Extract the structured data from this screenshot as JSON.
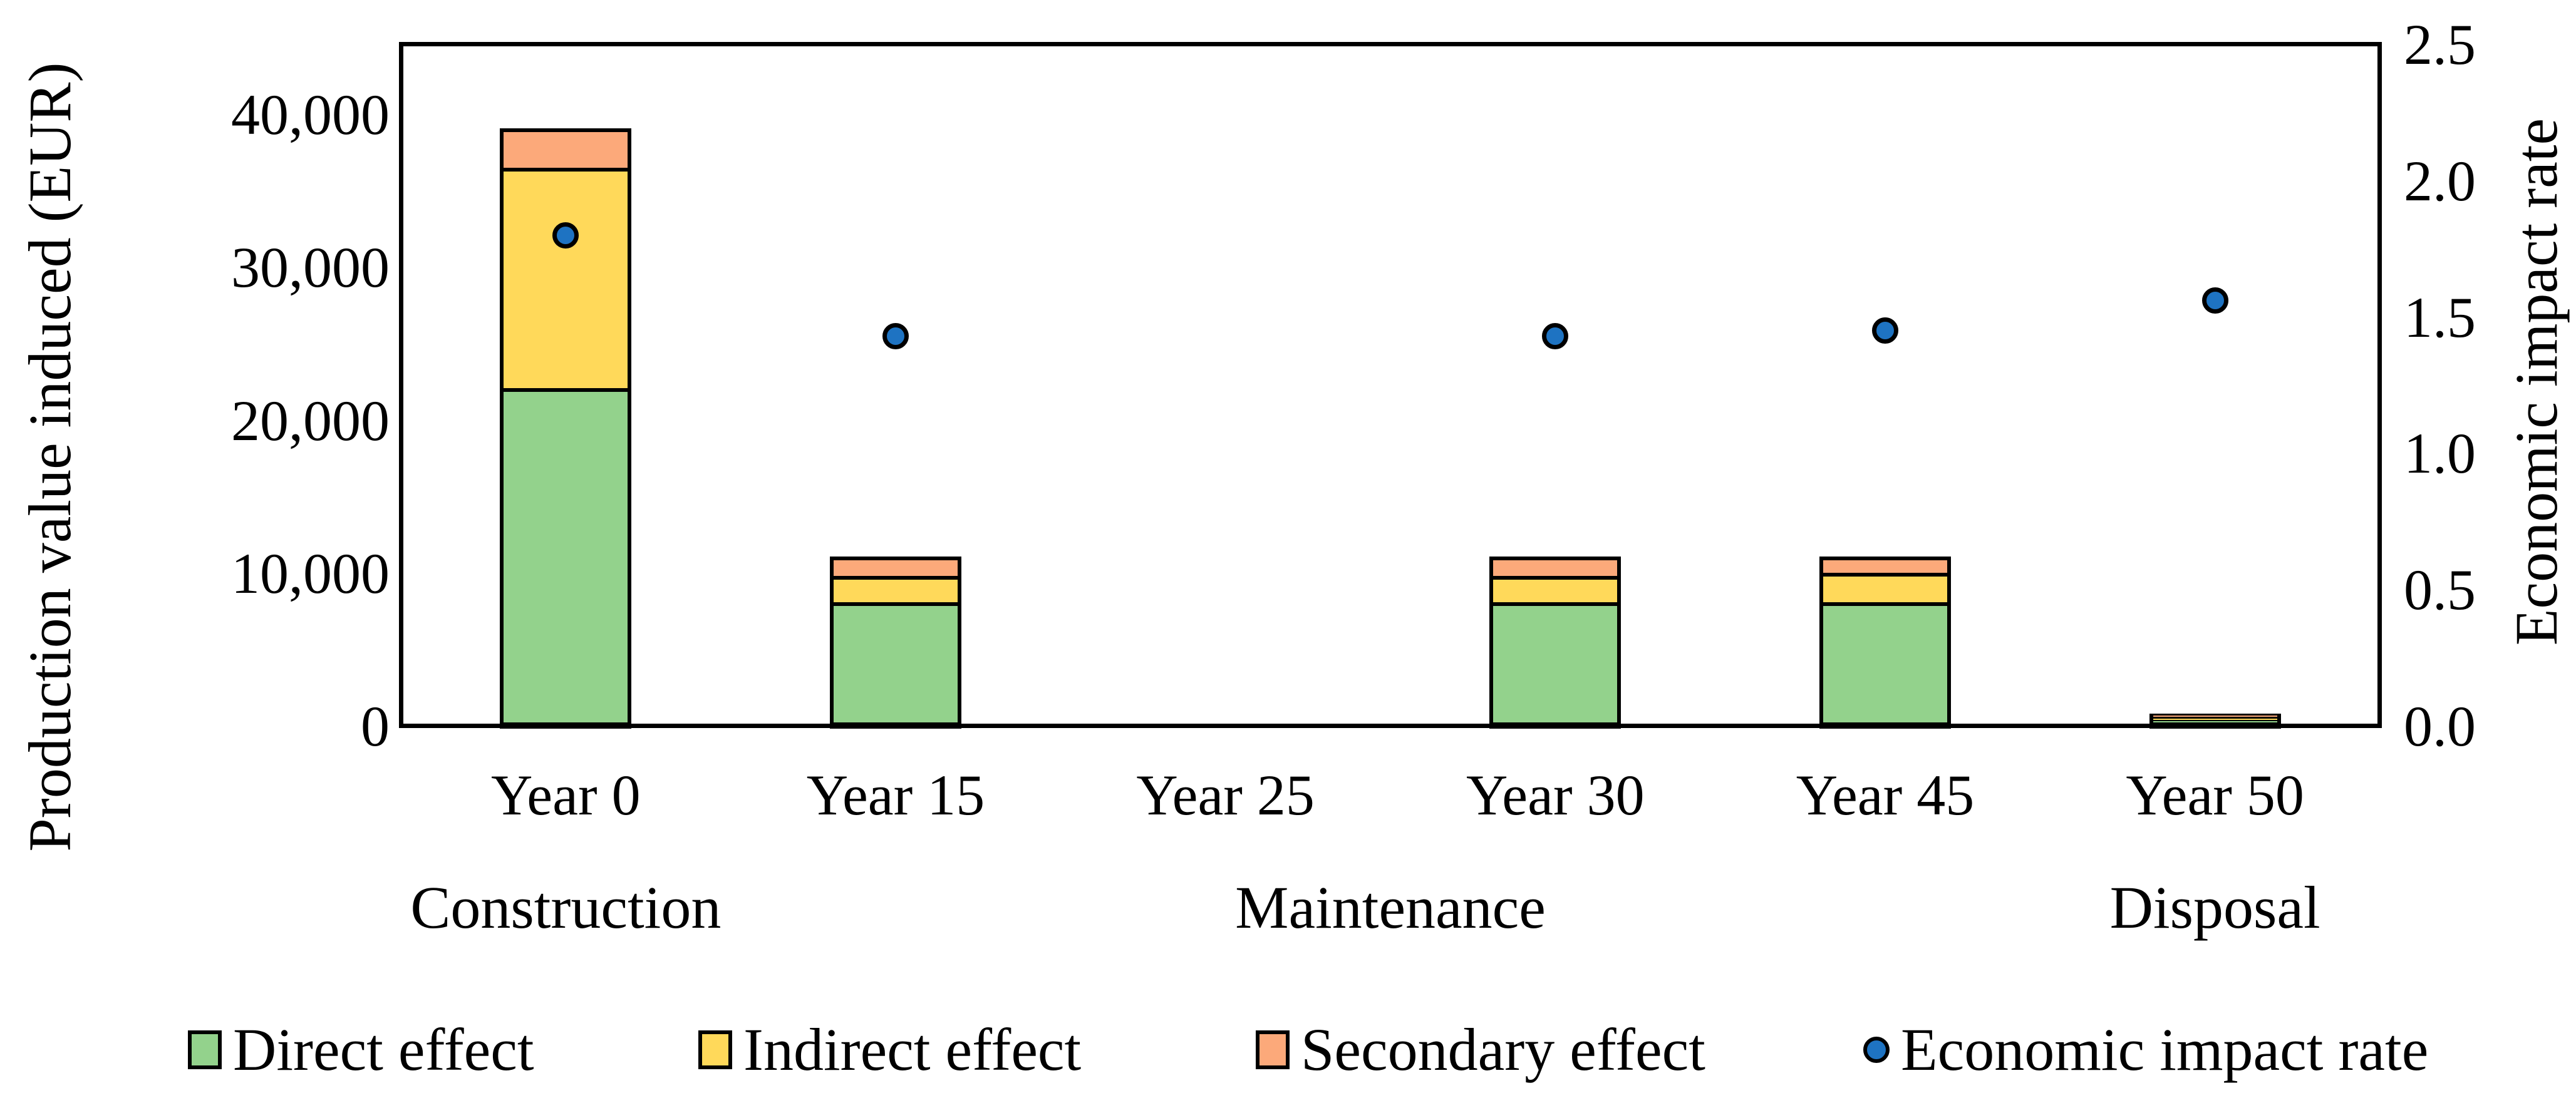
{
  "chart_data": {
    "type": "bar",
    "subtype": "stacked-bars-with-scatter-dual-axis",
    "categories": [
      "Year 0",
      "Year 15",
      "Year 25",
      "Year 30",
      "Year 45",
      "Year 50"
    ],
    "series": [
      {
        "name": "Direct effect",
        "color": "#93D28C",
        "values": [
          22000,
          8000,
          0,
          8000,
          8000,
          300
        ]
      },
      {
        "name": "Indirect effect",
        "color": "#FFD95A",
        "values": [
          14400,
          1700,
          0,
          1700,
          1900,
          200
        ]
      },
      {
        "name": "Secondary effect",
        "color": "#FCA97A",
        "values": [
          2700,
          1400,
          0,
          1400,
          1200,
          300
        ]
      }
    ],
    "scatter": {
      "name": "Economic impact rate",
      "color": "#1E73C2",
      "values": [
        1.8,
        1.43,
        null,
        1.43,
        1.45,
        1.56
      ]
    },
    "left_axis": {
      "label": "Production value induced (EUR)",
      "max_value_at_top": 44600,
      "ticks": [
        {
          "label": "0",
          "value": 0
        },
        {
          "label": "10,000",
          "value": 10000
        },
        {
          "label": "20,000",
          "value": 20000
        },
        {
          "label": "30,000",
          "value": 30000
        },
        {
          "label": "40,000",
          "value": 40000
        }
      ]
    },
    "right_axis": {
      "label": "Economic impact rate",
      "max_value_at_top": 2.5,
      "ticks": [
        {
          "label": "0.0",
          "value": 0.0
        },
        {
          "label": "0.5",
          "value": 0.5
        },
        {
          "label": "1.0",
          "value": 1.0
        },
        {
          "label": "1.5",
          "value": 1.5
        },
        {
          "label": "2.0",
          "value": 2.0
        },
        {
          "label": "2.5",
          "value": 2.5
        }
      ]
    },
    "phases": [
      {
        "label": "Construction",
        "slot_center": 0.5
      },
      {
        "label": "Maintenance",
        "slot_center": 3.0
      },
      {
        "label": "Disposal",
        "slot_center": 5.5
      }
    ],
    "grid": "off",
    "legend_position": "bottom"
  },
  "colors": {
    "direct": "#93D28C",
    "indirect": "#FFD95A",
    "secondary": "#FCA97A",
    "rate_dot": "#1E73C2",
    "line": "#000000",
    "background": "#FFFFFF"
  }
}
